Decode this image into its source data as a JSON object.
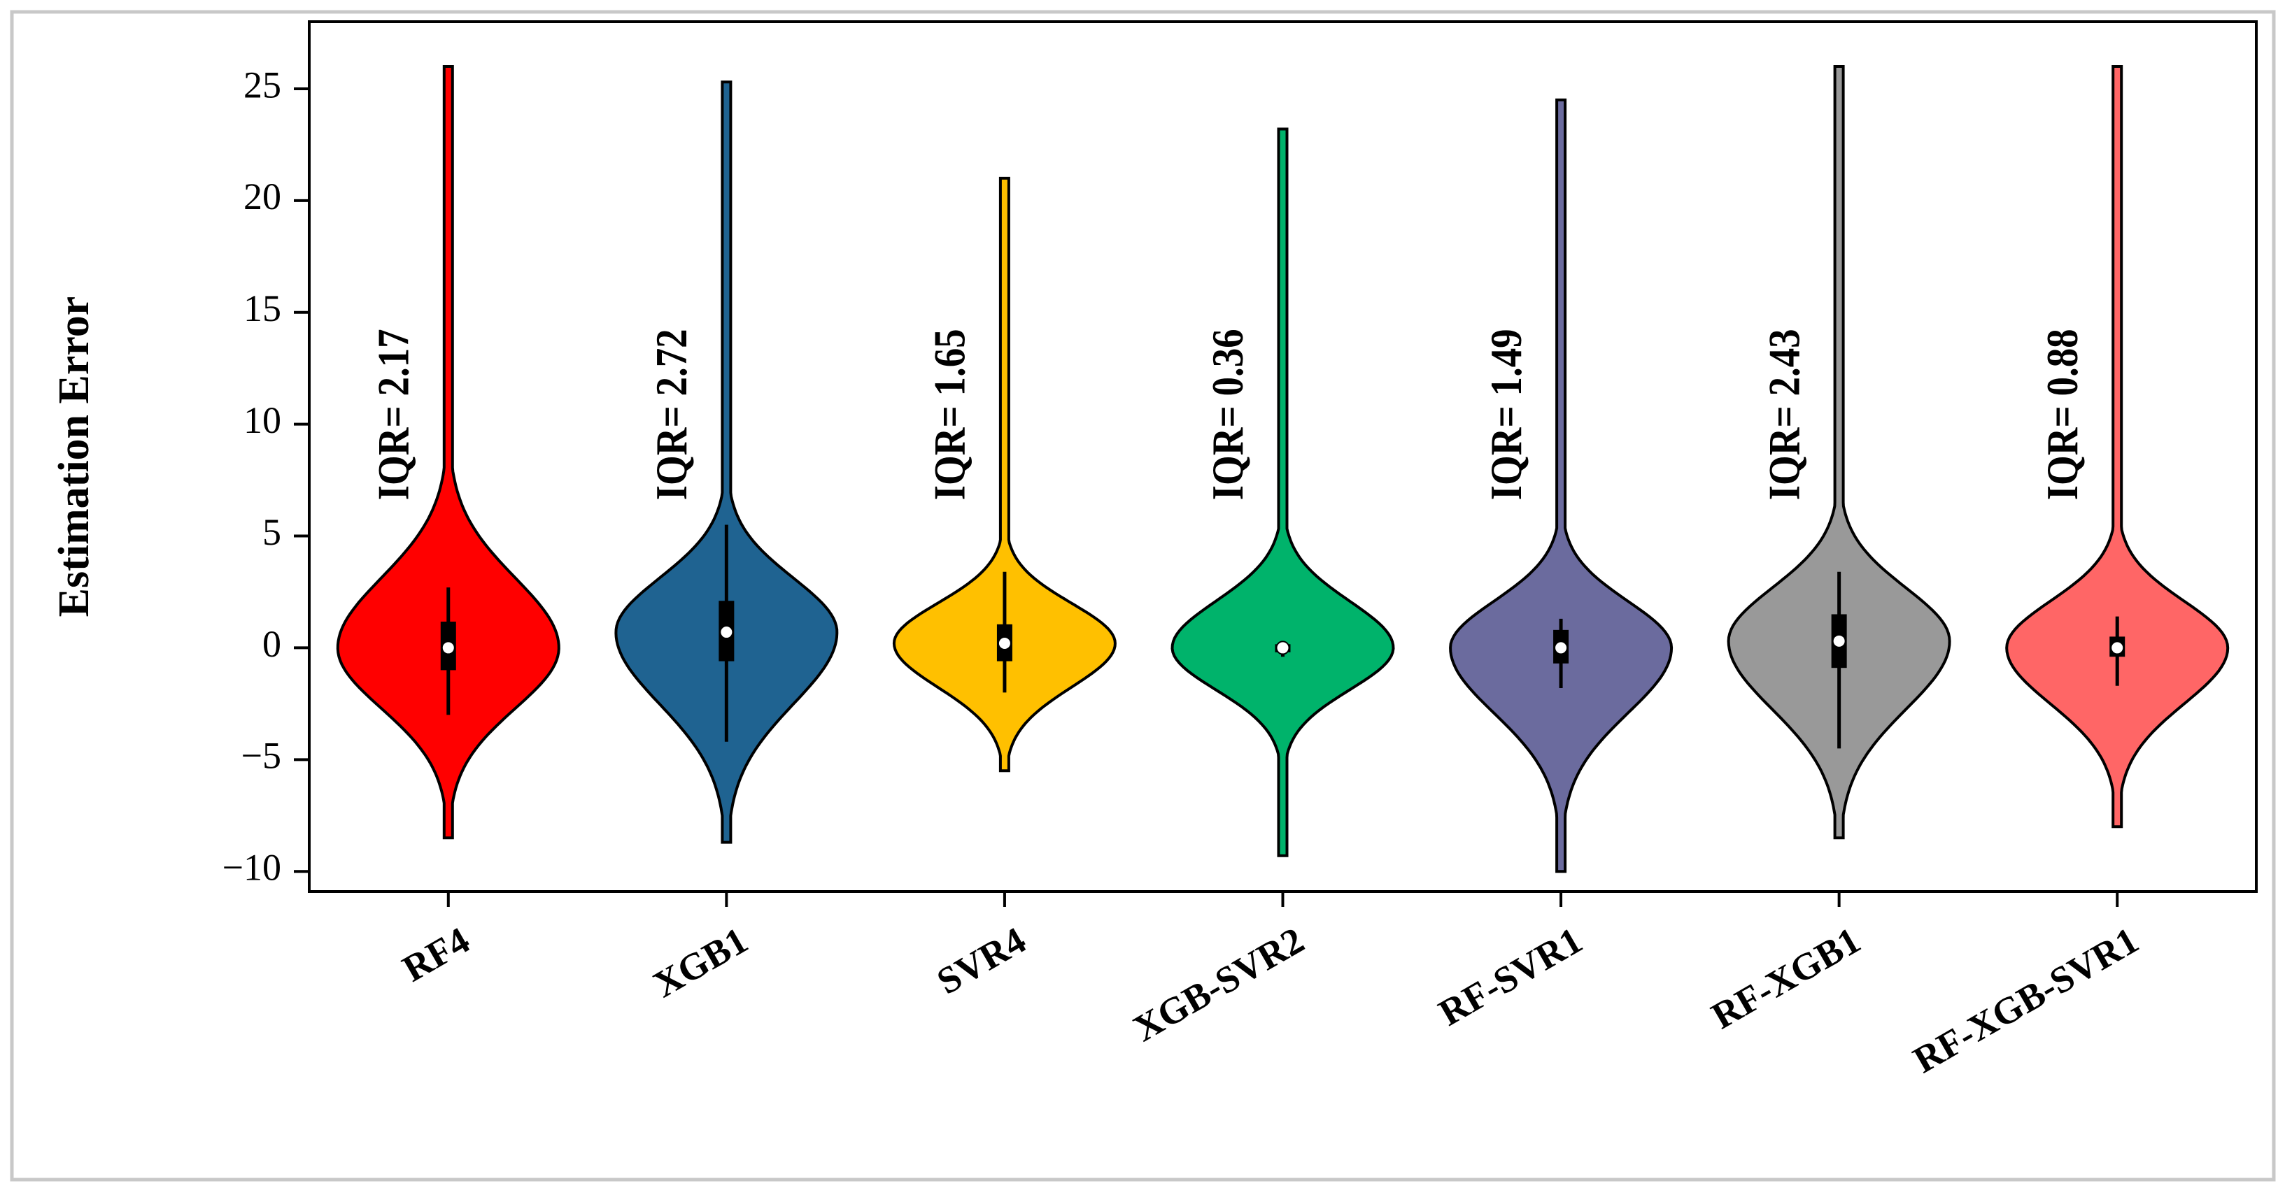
{
  "chart_data": {
    "type": "violin",
    "y_label": "Estimation Error",
    "categories": [
      "RF4",
      "XGB1",
      "SVR4",
      "XGB-SVR2",
      "RF-SVR1",
      "RF-XGB1",
      "RF-XGB-SVR1"
    ],
    "series": [
      {
        "name": "RF4",
        "color": "#ff0000",
        "annotation": "IQR= 2.17",
        "min": -8.5,
        "max": 26,
        "body": [
          -6.5,
          7.5
        ],
        "median": 0,
        "q1": -1.0,
        "q3": 1.17,
        "whisker": [
          -3,
          2.7
        ]
      },
      {
        "name": "XGB1",
        "color": "#1f6391",
        "annotation": "IQR= 2.72",
        "min": -8.7,
        "max": 25.3,
        "body": [
          -7,
          6.5
        ],
        "median": 0.7,
        "q1": -0.6,
        "q3": 2.1,
        "whisker": [
          -4.2,
          5.5
        ]
      },
      {
        "name": "SVR4",
        "color": "#ffc000",
        "annotation": "IQR= 1.65",
        "min": -5.5,
        "max": 21,
        "body": [
          -4.5,
          4.5
        ],
        "median": 0.2,
        "q1": -0.6,
        "q3": 1.05,
        "whisker": [
          -2,
          3.4
        ]
      },
      {
        "name": "XGB-SVR2",
        "color": "#00b36b",
        "annotation": "IQR= 0.36",
        "min": -9.3,
        "max": 23.2,
        "body": [
          -4.5,
          5
        ],
        "median": 0,
        "q1": -0.2,
        "q3": 0.16,
        "whisker": [
          -0.4,
          0.3
        ]
      },
      {
        "name": "RF-SVR1",
        "color": "#6b6b9e",
        "annotation": "IQR= 1.49",
        "min": -10,
        "max": 24.5,
        "body": [
          -7,
          5
        ],
        "median": 0,
        "q1": -0.7,
        "q3": 0.8,
        "whisker": [
          -1.8,
          1.3
        ]
      },
      {
        "name": "RF-XGB1",
        "color": "#999999",
        "annotation": "IQR= 2.43",
        "min": -8.5,
        "max": 26,
        "body": [
          -7,
          6
        ],
        "median": 0.3,
        "q1": -0.9,
        "q3": 1.5,
        "whisker": [
          -4.5,
          3.4
        ]
      },
      {
        "name": "RF-XGB-SVR1",
        "color": "#ff6666",
        "annotation": "IQR= 0.88",
        "min": -8,
        "max": 26,
        "body": [
          -6,
          5
        ],
        "median": 0,
        "q1": -0.4,
        "q3": 0.5,
        "whisker": [
          -1.7,
          1.4
        ]
      }
    ],
    "ylim": [
      -10.9,
      28
    ],
    "yticks": [
      {
        "value": -10,
        "label": "−10"
      },
      {
        "value": -5,
        "label": "−5"
      },
      0,
      5,
      10,
      15,
      20,
      25
    ],
    "grid": false
  }
}
